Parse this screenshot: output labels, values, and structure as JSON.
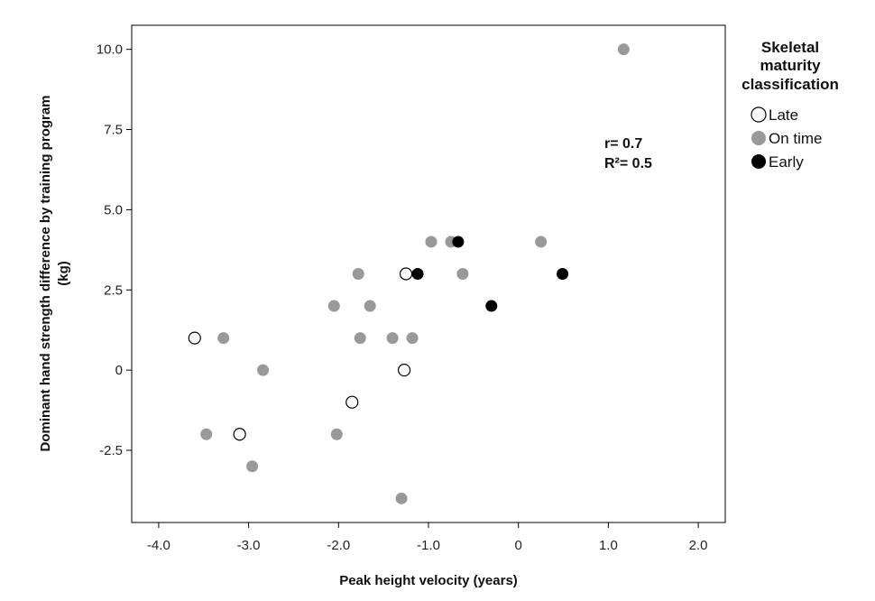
{
  "chart_data": {
    "type": "scatter",
    "title": "",
    "xlabel": "Peak height velocity (years)",
    "ylabel_lines": [
      "Dominant hand strength difference by training program",
      "(kg)"
    ],
    "xlim": [
      -4.3,
      2.3
    ],
    "ylim": [
      -4.75,
      10.75
    ],
    "x_ticks": [
      -4.0,
      -3.0,
      -2.0,
      -1.0,
      0,
      1.0,
      2.0
    ],
    "x_tick_labels": [
      "-4.0",
      "-3.0",
      "-2.0",
      "-1.0",
      "0",
      "1.0",
      "2.0"
    ],
    "y_ticks": [
      -2.5,
      0,
      2.5,
      5.0,
      7.5,
      10.0
    ],
    "y_tick_labels": [
      "-2.5",
      "0",
      "2.5",
      "5.0",
      "7.5",
      "10.0"
    ],
    "grid": false,
    "legend_placement": "right",
    "legend_title_lines": [
      "Skeletal",
      "maturity",
      "classification"
    ],
    "annotations": [
      "r= 0.7",
      "R²= 0.5"
    ],
    "series": [
      {
        "name": "Late",
        "marker": "open",
        "color": "#000000",
        "points": [
          [
            -3.6,
            1
          ],
          [
            -3.1,
            -2
          ],
          [
            -1.85,
            -1
          ],
          [
            -1.25,
            3
          ],
          [
            -1.27,
            0
          ]
        ]
      },
      {
        "name": "On time",
        "marker": "filled",
        "color": "#999999",
        "points": [
          [
            1.17,
            10
          ],
          [
            -0.97,
            4
          ],
          [
            -0.75,
            4
          ],
          [
            0.25,
            4
          ],
          [
            -1.78,
            3
          ],
          [
            -0.62,
            3
          ],
          [
            -2.05,
            2
          ],
          [
            -1.65,
            2
          ],
          [
            -3.28,
            1
          ],
          [
            -1.76,
            1
          ],
          [
            -1.4,
            1
          ],
          [
            -1.18,
            1
          ],
          [
            -2.84,
            0
          ],
          [
            -3.47,
            -2
          ],
          [
            -2.02,
            -2
          ],
          [
            -2.96,
            -3
          ],
          [
            -1.3,
            -4
          ]
        ]
      },
      {
        "name": "Early",
        "marker": "filled",
        "color": "#000000",
        "points": [
          [
            -0.67,
            4
          ],
          [
            -1.12,
            3
          ],
          [
            0.49,
            3
          ],
          [
            -0.3,
            2
          ]
        ]
      }
    ]
  }
}
